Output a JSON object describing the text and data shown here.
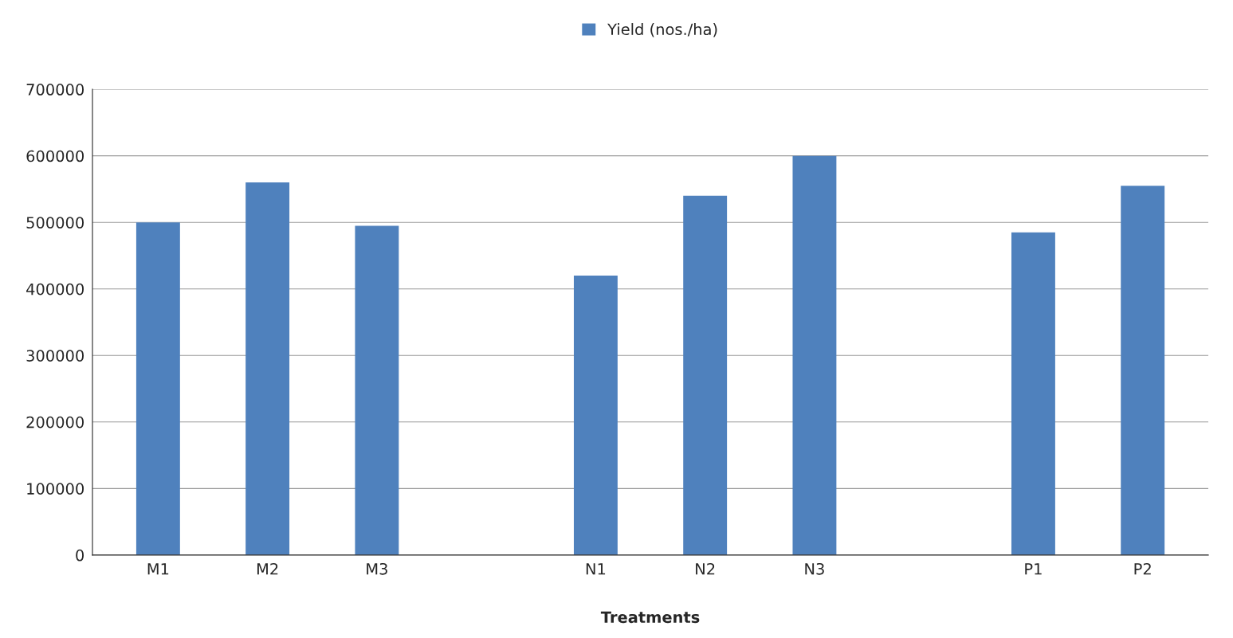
{
  "chart_data": {
    "type": "bar",
    "xlabel": "Treatments",
    "categories": [
      "M1",
      "M2",
      "M3",
      null,
      "N1",
      "N2",
      "N3",
      null,
      "P1",
      "P2"
    ],
    "series": [
      {
        "name": "Yield (nos./ha)",
        "color": "#4f81bd",
        "values": [
          500000,
          560000,
          495000,
          null,
          420000,
          540000,
          600000,
          null,
          485000,
          555000
        ]
      }
    ],
    "ylim": [
      0,
      700000
    ],
    "yticks": [
      0,
      100000,
      200000,
      300000,
      400000,
      500000,
      600000,
      700000
    ],
    "grid": "y",
    "legend": "top"
  }
}
